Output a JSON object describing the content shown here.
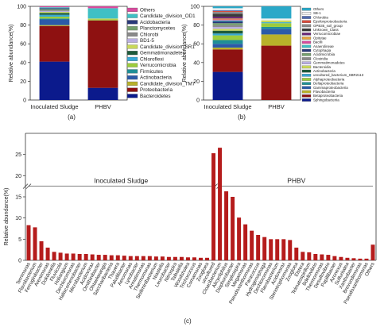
{
  "panel_labels": {
    "a": "(a)",
    "b": "(b)",
    "c": "(c)"
  },
  "chart_data": [
    {
      "type": "bar",
      "stacked": true,
      "panel": "(a)",
      "ylabel": "Relative abundance(%)",
      "ylim": [
        0,
        100
      ],
      "yticks": [
        0,
        20,
        40,
        60,
        80,
        100
      ],
      "categories": [
        "Inoculated Sludge",
        "PHBV"
      ],
      "legend_placement": "right",
      "series": [
        {
          "name": "Bacteroidetes",
          "color": "#0b1a8c",
          "values": [
            41,
            13
          ]
        },
        {
          "name": "Proteobacteria",
          "color": "#8e1111",
          "values": [
            38,
            72
          ]
        },
        {
          "name": "Candidate_division_TM7",
          "color": "#b8b12a",
          "values": [
            1,
            0
          ]
        },
        {
          "name": "Actinobacteria",
          "color": "#2b5aa8",
          "values": [
            6,
            0
          ]
        },
        {
          "name": "Firmicutes",
          "color": "#1f8f96",
          "values": [
            1,
            0
          ]
        },
        {
          "name": "Verrucomicrobia",
          "color": "#9ccc3c",
          "values": [
            2,
            1
          ]
        },
        {
          "name": "Chloroflexi",
          "color": "#37a8d6",
          "values": [
            2,
            0
          ]
        },
        {
          "name": "Gemmatimonadetes",
          "color": "#1e5b3a",
          "values": [
            2,
            0
          ]
        },
        {
          "name": "Candidate_division_SR1",
          "color": "#c9d85a",
          "values": [
            1,
            1
          ]
        },
        {
          "name": "BD1-5",
          "color": "#b9aee2",
          "values": [
            1,
            0
          ]
        },
        {
          "name": "Chlorobi",
          "color": "#8a8a8a",
          "values": [
            1,
            0
          ]
        },
        {
          "name": "Planctomycetes",
          "color": "#74a06d",
          "values": [
            1,
            0
          ]
        },
        {
          "name": "Acidobacteria",
          "color": "#2a3a7a",
          "values": [
            1,
            0
          ]
        },
        {
          "name": "Candidate_division_OD1",
          "color": "#3fc0c4",
          "values": [
            1,
            11
          ]
        },
        {
          "name": "Others",
          "color": "#d84b9e",
          "values": [
            1,
            2
          ]
        }
      ]
    },
    {
      "type": "bar",
      "stacked": true,
      "panel": "(b)",
      "ylabel": "Relative abundance(%)",
      "ylim": [
        0,
        100
      ],
      "yticks": [
        0,
        20,
        40,
        60,
        80,
        100
      ],
      "categories": [
        "Inoculated Sludge",
        "PHBV"
      ],
      "legend_placement": "right",
      "series": [
        {
          "name": "Sphingobacteriia",
          "color": "#0b1a8c",
          "values": [
            30,
            0
          ]
        },
        {
          "name": "Betaproteobacteria",
          "color": "#8e1111",
          "values": [
            24,
            58
          ]
        },
        {
          "name": "Flavobacteriia",
          "color": "#b8b12a",
          "values": [
            2,
            12
          ]
        },
        {
          "name": "Gammaproteobacteria",
          "color": "#2b5aa8",
          "values": [
            4,
            6
          ]
        },
        {
          "name": "Deltaproteobacteria",
          "color": "#1f8f96",
          "values": [
            4,
            2
          ]
        },
        {
          "name": "Alphaproteobacteria",
          "color": "#9ccc3c",
          "values": [
            5,
            4
          ]
        },
        {
          "name": "uncultured_bacterium_SBR2113",
          "color": "#37a8d6",
          "values": [
            2,
            1
          ]
        },
        {
          "name": "Actinobacteria",
          "color": "#1e5b3a",
          "values": [
            3,
            0
          ]
        },
        {
          "name": "Bacteroidia",
          "color": "#c9d85a",
          "values": [
            2,
            2
          ]
        },
        {
          "name": "Gemmatimonadetes",
          "color": "#b9aee2",
          "values": [
            2,
            0
          ]
        },
        {
          "name": "Clostridia",
          "color": "#8a8a8a",
          "values": [
            2,
            0
          ]
        },
        {
          "name": "Acidimicrobiia",
          "color": "#74a06d",
          "values": [
            2,
            0
          ]
        },
        {
          "name": "Cytophagia",
          "color": "#2a3a7a",
          "values": [
            2,
            0
          ]
        },
        {
          "name": "Anaerolineae",
          "color": "#3fc0c4",
          "values": [
            1,
            0
          ]
        },
        {
          "name": "Bacilli",
          "color": "#d84b9e",
          "values": [
            1,
            0
          ]
        },
        {
          "name": "Opitutae",
          "color": "#e6a33c",
          "values": [
            1,
            0
          ]
        },
        {
          "name": "Verrucomicrobiae",
          "color": "#6b2a7a",
          "values": [
            2,
            0
          ]
        },
        {
          "name": "Unknown_Class",
          "color": "#3a3a3a",
          "values": [
            3,
            0
          ]
        },
        {
          "name": "OPB35_soil_group",
          "color": "#8a8a8a",
          "values": [
            2,
            0
          ]
        },
        {
          "name": "Epsilonproteobacteria",
          "color": "#d94a3a",
          "values": [
            1,
            0
          ]
        },
        {
          "name": "Chlorobia",
          "color": "#4f6ab0",
          "values": [
            1,
            0
          ]
        },
        {
          "name": "SB-1",
          "color": "#f0f0f0",
          "values": [
            2,
            2
          ]
        },
        {
          "name": "Others",
          "color": "#2aa8c8",
          "values": [
            2,
            13
          ]
        }
      ]
    },
    {
      "type": "bar",
      "panel": "(c)",
      "ylabel": "Relative abundance(%)",
      "ylim": [
        0,
        30
      ],
      "yticks": [
        0,
        5,
        10,
        15,
        20,
        25
      ],
      "axis_break": true,
      "bar_color": "#b51c1c",
      "groups": [
        {
          "label": "Inoculated Sludge",
          "start": 0,
          "end": 39
        },
        {
          "label": "PHBV",
          "start": 40,
          "end": 69
        }
      ],
      "categories": [
        "Terrimonas",
        "Flavobacterium",
        "Ferruginibacter",
        "Arenimonas",
        "Dokdonella",
        "Fluviicola",
        "Haliangium",
        "Dechloromonas",
        "Haliscomenobacter",
        "Microbacterium",
        "Acidovorax",
        "Ornithinibacter",
        "Ohtaekwangia",
        "Saccharibacteria",
        "Thauera",
        "Paludibacter",
        "Aeromonas",
        "Lysobacter",
        "Armatimonas",
        "Thermomonas",
        "Sediminibacterium",
        "Niastella",
        "Leucobacter",
        "Nitrospira",
        "Taibaiella",
        "Woodsholea",
        "Trichococcus",
        "Comamonas",
        "Zoogloea",
        "uncultured",
        "Cloacibacterium",
        "Alicycliphilus",
        "Diaphorobacter",
        "Simplicispira",
        "Megamonas",
        "Pseudoxanthomonas",
        "Paracoccus",
        "Hydrogenophaga",
        "Dechloromonas",
        "Flavobacterium",
        "Acidovorax",
        "Stenotrophomonas",
        "Zoogloea",
        "Elstera",
        "Telmatospirillum",
        "Bdellovibrio",
        "Thermomonas",
        "Desulfovibrio",
        "Papillibacter",
        "Azonexus",
        "Sulfuritalea",
        "Xanthobacter",
        "Brevundimonas",
        "Pseudoxanthomonas",
        "Others"
      ],
      "values": [
        8.3,
        7.8,
        4.5,
        3.0,
        2.0,
        1.8,
        1.6,
        1.6,
        1.5,
        1.5,
        1.4,
        1.3,
        1.3,
        1.2,
        1.2,
        1.1,
        1.0,
        1.0,
        1.0,
        1.0,
        0.9,
        0.9,
        0.8,
        0.8,
        0.8,
        0.7,
        0.7,
        0.6,
        0.6,
        25.3,
        26.6,
        16.3,
        15.0,
        10.1,
        8.5,
        7.0,
        6.0,
        5.5,
        5.0,
        5.0,
        5.0,
        4.8,
        3.0,
        2.0,
        1.9,
        1.5,
        1.4,
        1.3,
        1.0,
        0.8,
        0.6,
        0.5,
        0.4,
        0.4,
        3.7
      ]
    }
  ]
}
